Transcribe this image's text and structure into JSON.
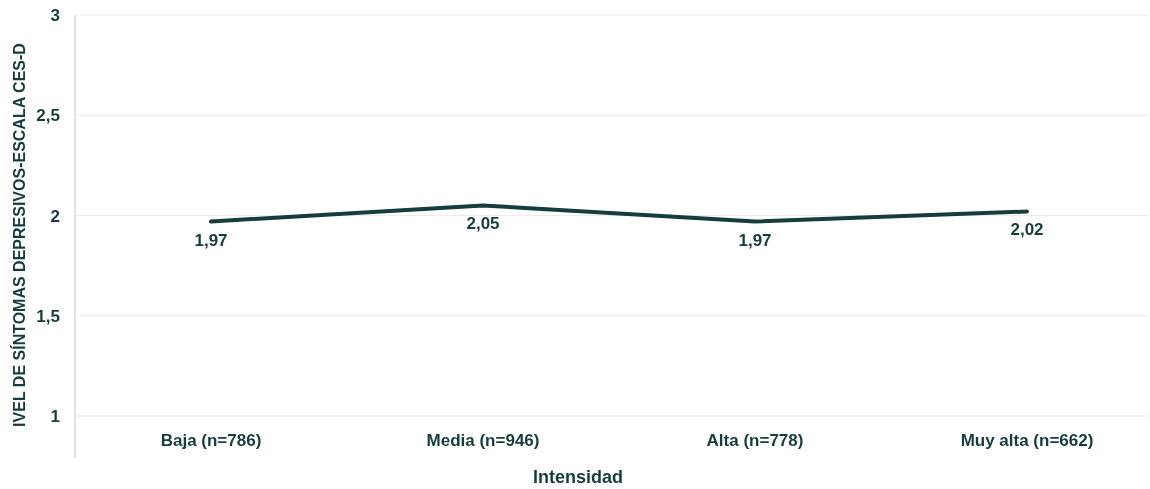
{
  "chart_data": {
    "type": "line",
    "xlabel": "Intensidad",
    "ylabel": "IVEL DE SÍNTOMAS DEPRESIVOS-ESCALA CES-D",
    "categories": [
      "Baja (n=786)",
      "Media (n=946)",
      "Alta (n=778)",
      "Muy alta  (n=662)"
    ],
    "series": [
      {
        "color": "#163d3d",
        "values": [
          1.97,
          2.05,
          1.97,
          2.02
        ],
        "value_labels": [
          "1,97",
          "2,05",
          "1,97",
          "2,02"
        ]
      }
    ],
    "ylim": [
      1,
      3
    ],
    "yticks": [
      1,
      {
        "value": 1.5,
        "label": "1,5"
      },
      2,
      {
        "value": 2.5,
        "label": "2,5"
      },
      3
    ],
    "grid": "y",
    "marker": "none",
    "line_style": "solid"
  }
}
